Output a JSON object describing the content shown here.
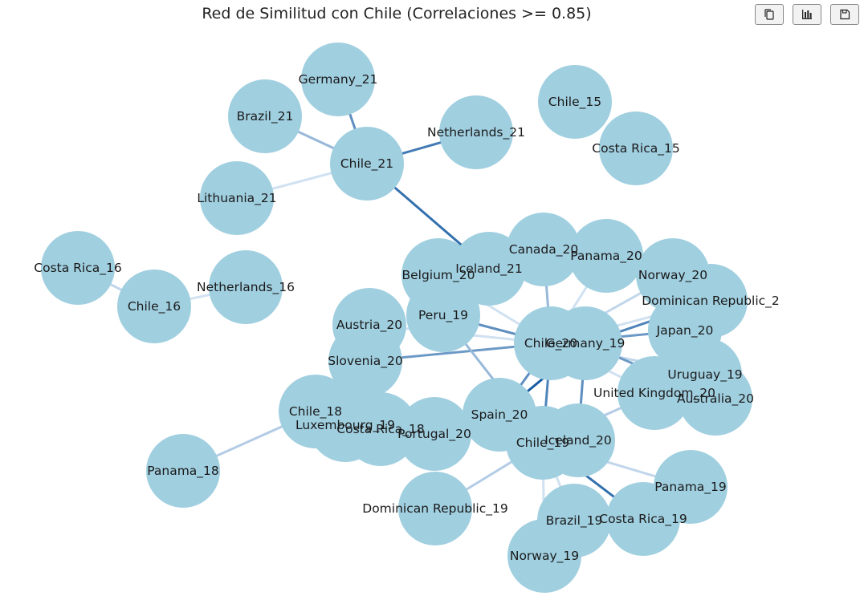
{
  "title": "Red de Similitud con Chile (Correlaciones >= 0.85)",
  "toolbar": {
    "copy_icon": "copy-icon",
    "chart_icon": "bar-chart-icon",
    "save_icon": "floppy-disk-icon"
  },
  "colors": {
    "node": "#a0cfe0",
    "edge_strong": "#08519c",
    "edge_weak": "#deebf7"
  },
  "network": {
    "nodes": [
      {
        "id": "Germany_21",
        "label": "Germany_21"
      },
      {
        "id": "Brazil_21",
        "label": "Brazil_21"
      },
      {
        "id": "Chile_21",
        "label": "Chile_21"
      },
      {
        "id": "Netherlands_21",
        "label": "Netherlands_21"
      },
      {
        "id": "Lithuania_21",
        "label": "Lithuania_21"
      },
      {
        "id": "Chile_15",
        "label": "Chile_15"
      },
      {
        "id": "Costa Rica_15",
        "label": "Costa Rica_15"
      },
      {
        "id": "Costa Rica_16",
        "label": "Costa Rica_16"
      },
      {
        "id": "Chile_16",
        "label": "Chile_16"
      },
      {
        "id": "Netherlands_16",
        "label": "Netherlands_16"
      },
      {
        "id": "Canada_20",
        "label": "Canada_20"
      },
      {
        "id": "Panama_20",
        "label": "Panama_20"
      },
      {
        "id": "Norway_20",
        "label": "Norway_20"
      },
      {
        "id": "Dominican Republic_20",
        "label": "Dominican Republic_2"
      },
      {
        "id": "Japan_20",
        "label": "Japan_20"
      },
      {
        "id": "Uruguay_19",
        "label": "Uruguay_19"
      },
      {
        "id": "Australia_20",
        "label": "Australia_20"
      },
      {
        "id": "United Kingdom_20",
        "label": "United Kingdom_20"
      },
      {
        "id": "Belgium_20",
        "label": "Belgium_20"
      },
      {
        "id": "Iceland_21",
        "label": "Iceland_21"
      },
      {
        "id": "Peru_19",
        "label": "Peru_19"
      },
      {
        "id": "Austria_20",
        "label": "Austria_20"
      },
      {
        "id": "Slovenia_20",
        "label": "Slovenia_20"
      },
      {
        "id": "Chile_20",
        "label": "Chile_20"
      },
      {
        "id": "Germany_19",
        "label": "Germany_19"
      },
      {
        "id": "Chile_18",
        "label": "Chile_18"
      },
      {
        "id": "Luxembourg_19",
        "label": "Luxembourg_19"
      },
      {
        "id": "Costa Rica_18",
        "label": "Costa Rica_18"
      },
      {
        "id": "Portugal_20",
        "label": "Portugal_20"
      },
      {
        "id": "Spain_20",
        "label": "Spain_20"
      },
      {
        "id": "Panama_18",
        "label": "Panama_18"
      },
      {
        "id": "Chile_19",
        "label": "Chile_19"
      },
      {
        "id": "Iceland_20",
        "label": "Iceland_20"
      },
      {
        "id": "Dominican Republic_19",
        "label": "Dominican Republic_19"
      },
      {
        "id": "Panama_19",
        "label": "Panama_19"
      },
      {
        "id": "Brazil_19",
        "label": "Brazil_19"
      },
      {
        "id": "Costa Rica_19",
        "label": "Costa Rica_19"
      },
      {
        "id": "Norway_19",
        "label": "Norway_19"
      }
    ],
    "edges": [
      {
        "source": "Chile_21",
        "target": "Germany_21",
        "weight": 0.94
      },
      {
        "source": "Chile_21",
        "target": "Brazil_21",
        "weight": 0.9
      },
      {
        "source": "Chile_21",
        "target": "Netherlands_21",
        "weight": 0.96
      },
      {
        "source": "Chile_21",
        "target": "Lithuania_21",
        "weight": 0.86
      },
      {
        "source": "Chile_21",
        "target": "Iceland_21",
        "weight": 0.97
      },
      {
        "source": "Chile_16",
        "target": "Costa Rica_16",
        "weight": 0.87
      },
      {
        "source": "Chile_16",
        "target": "Netherlands_16",
        "weight": 0.86
      },
      {
        "source": "Chile_18",
        "target": "Panama_18",
        "weight": 0.88
      },
      {
        "source": "Chile_18",
        "target": "Luxembourg_19",
        "weight": 0.9
      },
      {
        "source": "Chile_18",
        "target": "Costa Rica_18",
        "weight": 0.88
      },
      {
        "source": "Chile_20",
        "target": "Slovenia_20",
        "weight": 0.93
      },
      {
        "source": "Chile_20",
        "target": "Peru_19",
        "weight": 0.94
      },
      {
        "source": "Chile_20",
        "target": "Canada_20",
        "weight": 0.9
      },
      {
        "source": "Chile_20",
        "target": "Panama_20",
        "weight": 0.86
      },
      {
        "source": "Chile_20",
        "target": "Norway_20",
        "weight": 0.87
      },
      {
        "source": "Chile_20",
        "target": "Dominican Republic_20",
        "weight": 0.86
      },
      {
        "source": "Chile_20",
        "target": "Japan_20",
        "weight": 0.93
      },
      {
        "source": "Chile_20",
        "target": "Uruguay_19",
        "weight": 0.87
      },
      {
        "source": "Chile_20",
        "target": "United Kingdom_20",
        "weight": 0.86
      },
      {
        "source": "Chile_20",
        "target": "Spain_20",
        "weight": 0.94
      },
      {
        "source": "Chile_20",
        "target": "Chile_19",
        "weight": 0.95
      },
      {
        "source": "Chile_20",
        "target": "Austria_20",
        "weight": 0.86
      },
      {
        "source": "Chile_20",
        "target": "Belgium_20",
        "weight": 0.86
      },
      {
        "source": "Chile_20",
        "target": "Germany_19",
        "weight": 0.92
      },
      {
        "source": "Germany_19",
        "target": "Dominican Republic_20",
        "weight": 0.95
      },
      {
        "source": "Germany_19",
        "target": "Australia_20",
        "weight": 0.93
      },
      {
        "source": "Germany_19",
        "target": "Iceland_20",
        "weight": 0.94
      },
      {
        "source": "Germany_19",
        "target": "Spain_20",
        "weight": 0.99
      },
      {
        "source": "Chile_19",
        "target": "Peru_19",
        "weight": 0.9
      },
      {
        "source": "Chile_19",
        "target": "Iceland_20",
        "weight": 0.9
      },
      {
        "source": "Chile_19",
        "target": "Dominican Republic_19",
        "weight": 0.88
      },
      {
        "source": "Chile_19",
        "target": "Panama_19",
        "weight": 0.87
      },
      {
        "source": "Chile_19",
        "target": "Brazil_19",
        "weight": 0.86
      },
      {
        "source": "Chile_19",
        "target": "Costa Rica_19",
        "weight": 0.97
      },
      {
        "source": "Chile_19",
        "target": "Norway_19",
        "weight": 0.86
      },
      {
        "source": "Chile_19",
        "target": "Portugal_20",
        "weight": 0.86
      },
      {
        "source": "Chile_19",
        "target": "United Kingdom_20",
        "weight": 0.88
      }
    ]
  }
}
